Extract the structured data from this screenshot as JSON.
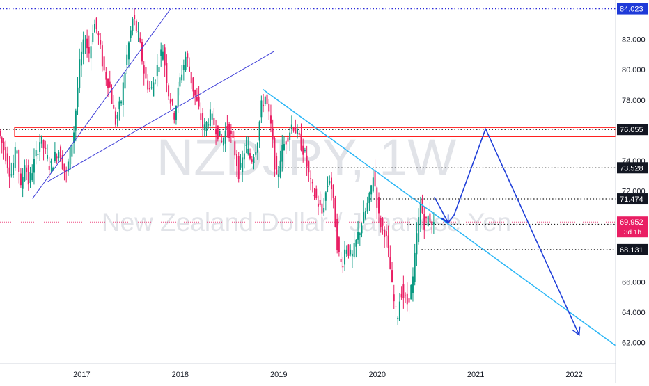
{
  "watermark": {
    "symbol": "NZDJPY, 1W",
    "name": "New Zealand Dollar / Japanese Yen"
  },
  "colors": {
    "up": "#089981",
    "down": "#e91e63",
    "price_line": "#e91e63",
    "box": "#ff0000",
    "channel_line": "#3f3fd8",
    "downtrend_line": "#29b6f6",
    "projection": "#1f3fd9",
    "dotted": "#1a1a1a",
    "top_dotted": "#2a2ad8"
  },
  "chart_data": {
    "type": "candlestick",
    "title": "",
    "xlabel": "",
    "ylabel": "",
    "xlim": [
      2016.17,
      2022.42
    ],
    "ylim": [
      60.6,
      84.6
    ],
    "x_ticks": [
      {
        "x": 2017,
        "label": "2017"
      },
      {
        "x": 2018,
        "label": "2018"
      },
      {
        "x": 2019,
        "label": "2019"
      },
      {
        "x": 2020,
        "label": "2020"
      },
      {
        "x": 2021,
        "label": "2021"
      },
      {
        "x": 2022,
        "label": "2022"
      }
    ],
    "y_ticks": [
      {
        "y": 62,
        "label": "62.000"
      },
      {
        "y": 64,
        "label": "64.000"
      },
      {
        "y": 66,
        "label": "66.000"
      },
      {
        "y": 72,
        "label": "72.000"
      },
      {
        "y": 74,
        "label": "74.000"
      },
      {
        "y": 78,
        "label": "78.000"
      },
      {
        "y": 80,
        "label": "80.000"
      },
      {
        "y": 82,
        "label": "82.000"
      }
    ],
    "price_path": [
      [
        2016.17,
        76.0
      ],
      [
        2016.24,
        74.5
      ],
      [
        2016.3,
        73.0
      ],
      [
        2016.36,
        75.0
      ],
      [
        2016.4,
        72.0
      ],
      [
        2016.44,
        74.0
      ],
      [
        2016.48,
        72.5
      ],
      [
        2016.52,
        73.5
      ],
      [
        2016.6,
        75.5
      ],
      [
        2016.7,
        73.5
      ],
      [
        2016.78,
        74.8
      ],
      [
        2016.86,
        73.0
      ],
      [
        2016.94,
        76.0
      ],
      [
        2017.0,
        80.5
      ],
      [
        2017.05,
        82.0
      ],
      [
        2017.1,
        81.0
      ],
      [
        2017.14,
        83.2
      ],
      [
        2017.18,
        82.5
      ],
      [
        2017.24,
        80.0
      ],
      [
        2017.3,
        79.0
      ],
      [
        2017.36,
        76.5
      ],
      [
        2017.42,
        78.0
      ],
      [
        2017.48,
        81.0
      ],
      [
        2017.54,
        83.5
      ],
      [
        2017.6,
        82.0
      ],
      [
        2017.66,
        79.5
      ],
      [
        2017.72,
        78.5
      ],
      [
        2017.78,
        80.0
      ],
      [
        2017.84,
        81.5
      ],
      [
        2017.9,
        78.5
      ],
      [
        2017.96,
        77.0
      ],
      [
        2018.02,
        79.5
      ],
      [
        2018.08,
        81.0
      ],
      [
        2018.14,
        79.0
      ],
      [
        2018.2,
        77.5
      ],
      [
        2018.26,
        76.0
      ],
      [
        2018.32,
        77.0
      ],
      [
        2018.38,
        76.2
      ],
      [
        2018.44,
        75.2
      ],
      [
        2018.5,
        76.3
      ],
      [
        2018.56,
        75.0
      ],
      [
        2018.62,
        73.0
      ],
      [
        2018.68,
        75.0
      ],
      [
        2018.74,
        74.0
      ],
      [
        2018.8,
        75.2
      ],
      [
        2018.84,
        77.5
      ],
      [
        2018.88,
        78.3
      ],
      [
        2018.94,
        76.2
      ],
      [
        2019.0,
        72.5
      ],
      [
        2019.04,
        74.5
      ],
      [
        2019.1,
        75.5
      ],
      [
        2019.16,
        76.5
      ],
      [
        2019.22,
        75.5
      ],
      [
        2019.28,
        74.5
      ],
      [
        2019.34,
        72.5
      ],
      [
        2019.4,
        71.5
      ],
      [
        2019.46,
        70.5
      ],
      [
        2019.5,
        72.0
      ],
      [
        2019.54,
        73.0
      ],
      [
        2019.58,
        70.8
      ],
      [
        2019.62,
        68.0
      ],
      [
        2019.66,
        67.0
      ],
      [
        2019.7,
        68.5
      ],
      [
        2019.76,
        67.5
      ],
      [
        2019.82,
        69.0
      ],
      [
        2019.88,
        70.2
      ],
      [
        2019.94,
        71.5
      ],
      [
        2019.98,
        73.2
      ],
      [
        2020.04,
        70.0
      ],
      [
        2020.1,
        69.3
      ],
      [
        2020.14,
        67.5
      ],
      [
        2020.18,
        65.0
      ],
      [
        2020.22,
        63.5
      ],
      [
        2020.26,
        65.5
      ],
      [
        2020.32,
        64.5
      ],
      [
        2020.38,
        66.0
      ],
      [
        2020.42,
        69.0
      ],
      [
        2020.46,
        71.2
      ],
      [
        2020.5,
        69.8
      ],
      [
        2020.54,
        70.3
      ],
      [
        2020.58,
        69.95
      ]
    ],
    "last_price": 69.952,
    "levels": [
      {
        "price": 84.023,
        "label": "84.023",
        "style": "top",
        "x_start": 2016.17
      },
      {
        "price": 76.055,
        "label": "76.055",
        "style": "dotted",
        "x_start": 2016.17
      },
      {
        "price": 73.528,
        "label": "73.528",
        "style": "dotted",
        "x_start": 2019.0
      },
      {
        "price": 71.474,
        "label": "71.474",
        "style": "dotted",
        "x_start": 2019.9
      },
      {
        "price": 69.797,
        "label": "69.797",
        "style": "dotted",
        "x_start": 2020.3
      },
      {
        "price": 68.131,
        "label": "68.131",
        "style": "dotted",
        "x_start": 2020.45
      }
    ],
    "support_zone": {
      "x_start": 2016.32,
      "x_end": 2022.42,
      "top": 76.2,
      "bottom": 75.6
    },
    "channel_lines": [
      {
        "from": [
          2016.5,
          71.5
        ],
        "to": [
          2017.9,
          84.0
        ]
      },
      {
        "from": [
          2016.65,
          72.6
        ],
        "to": [
          2018.95,
          81.2
        ]
      }
    ],
    "downtrend_line": {
      "from": [
        2018.84,
        78.7
      ],
      "to": [
        2022.42,
        61.8
      ]
    },
    "projection_path": [
      [
        2020.58,
        71.6
      ],
      [
        2020.72,
        69.9
      ],
      [
        2020.66,
        70.2
      ],
      [
        2020.72,
        69.9
      ],
      [
        2020.78,
        70.4
      ],
      [
        2021.1,
        76.1
      ],
      [
        2022.05,
        62.5
      ]
    ],
    "price_tag_label": "69.952",
    "countdown": "3d 1h"
  }
}
